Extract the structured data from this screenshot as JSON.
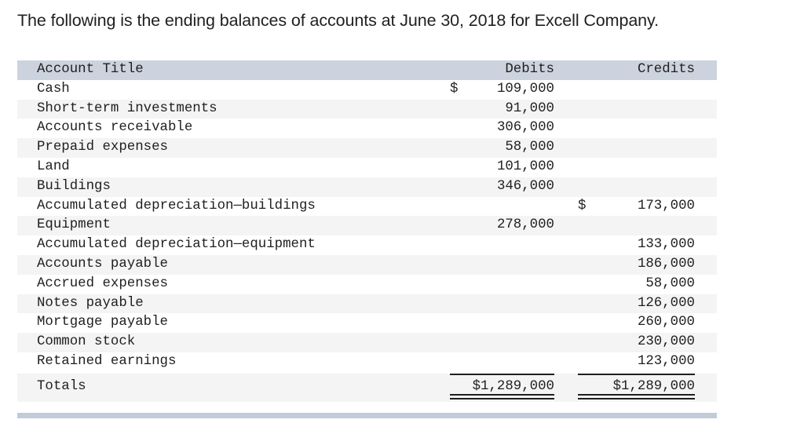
{
  "intro": "The following is the ending balances of accounts at June 30, 2018 for Excell Company.",
  "table": {
    "headers": {
      "account_title": "Account Title",
      "debits": "Debits",
      "credits": "Credits"
    },
    "rows": [
      {
        "title": "Cash",
        "debit_currency": "$",
        "debit": "109,000",
        "credit_currency": "",
        "credit": ""
      },
      {
        "title": "Short-term investments",
        "debit_currency": "",
        "debit": "91,000",
        "credit_currency": "",
        "credit": ""
      },
      {
        "title": "Accounts receivable",
        "debit_currency": "",
        "debit": "306,000",
        "credit_currency": "",
        "credit": ""
      },
      {
        "title": "Prepaid expenses",
        "debit_currency": "",
        "debit": "58,000",
        "credit_currency": "",
        "credit": ""
      },
      {
        "title": "Land",
        "debit_currency": "",
        "debit": "101,000",
        "credit_currency": "",
        "credit": ""
      },
      {
        "title": "Buildings",
        "debit_currency": "",
        "debit": "346,000",
        "credit_currency": "",
        "credit": ""
      },
      {
        "title": "Accumulated depreciation—buildings",
        "debit_currency": "",
        "debit": "",
        "credit_currency": "$",
        "credit": "173,000"
      },
      {
        "title": "Equipment",
        "debit_currency": "",
        "debit": "278,000",
        "credit_currency": "",
        "credit": ""
      },
      {
        "title": "Accumulated depreciation—equipment",
        "debit_currency": "",
        "debit": "",
        "credit_currency": "",
        "credit": "133,000"
      },
      {
        "title": "Accounts payable",
        "debit_currency": "",
        "debit": "",
        "credit_currency": "",
        "credit": "186,000"
      },
      {
        "title": "Accrued expenses",
        "debit_currency": "",
        "debit": "",
        "credit_currency": "",
        "credit": "58,000"
      },
      {
        "title": "Notes payable",
        "debit_currency": "",
        "debit": "",
        "credit_currency": "",
        "credit": "126,000"
      },
      {
        "title": "Mortgage payable",
        "debit_currency": "",
        "debit": "",
        "credit_currency": "",
        "credit": "260,000"
      },
      {
        "title": "Common stock",
        "debit_currency": "",
        "debit": "",
        "credit_currency": "",
        "credit": "230,000"
      },
      {
        "title": "Retained earnings",
        "debit_currency": "",
        "debit": "",
        "credit_currency": "",
        "credit": "123,000"
      }
    ],
    "totals": {
      "label": "Totals",
      "debit": "$1,289,000",
      "credit": "$1,289,000"
    }
  },
  "colors": {
    "header_bg": "#cdd3de",
    "alt_row_bg": "#f4f4f4",
    "bottom_bar": "#c3cada",
    "text": "#1f1f1f"
  }
}
